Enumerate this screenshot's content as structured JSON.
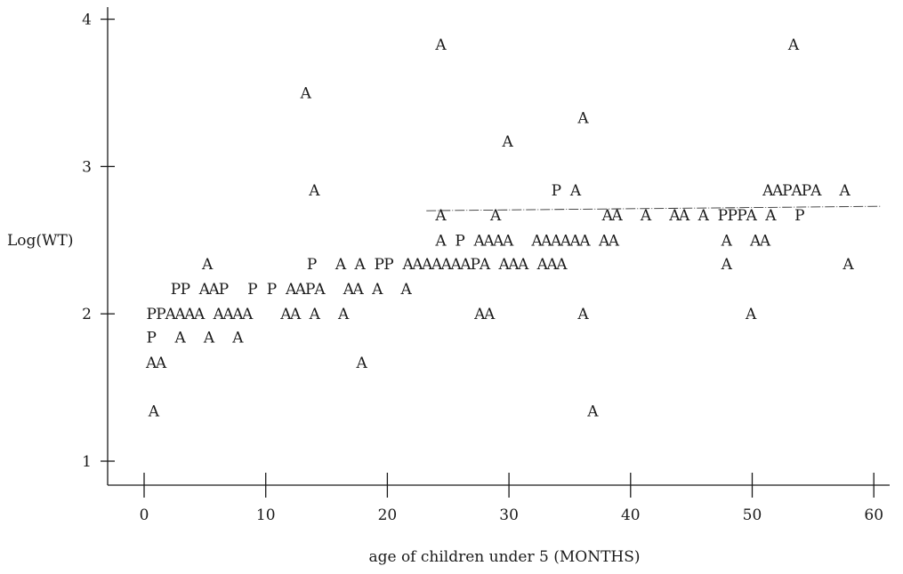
{
  "chart_data": {
    "type": "scatter",
    "xlabel": "age of children under 5 (MONTHS)",
    "ylabel": "Log(WT)",
    "x_ticks": [
      0,
      10,
      20,
      30,
      40,
      50,
      60
    ],
    "y_ticks": [
      1,
      2,
      3,
      4
    ],
    "xlim": [
      -1.2,
      61
    ],
    "ylim": [
      0.9,
      4.1
    ],
    "grid": false,
    "marker_legend": {
      "A": "A",
      "P": "P"
    },
    "reference_line": {
      "x": [
        23.5,
        60
      ],
      "y": [
        2.7,
        2.73
      ]
    },
    "rows": [
      {
        "y": 3.83,
        "text": "A",
        "x_start": 24.4
      },
      {
        "y": 3.83,
        "text": "A",
        "x_start": 53.4
      },
      {
        "y": 3.5,
        "text": "A",
        "x_start": 13.3
      },
      {
        "y": 3.33,
        "text": "A",
        "x_start": 36.1
      },
      {
        "y": 3.17,
        "text": "A",
        "x_start": 29.9
      },
      {
        "y": 2.84,
        "text": "A",
        "x_start": 14.0
      },
      {
        "y": 2.84,
        "text": "P A",
        "x_start": 33.9
      },
      {
        "y": 2.84,
        "text": "AAPAPA  A",
        "x_start": 51.3
      },
      {
        "y": 2.67,
        "text": "A",
        "x_start": 24.4
      },
      {
        "y": 2.67,
        "text": "A",
        "x_start": 28.9
      },
      {
        "y": 2.67,
        "text": "AA  A  AA A PPPA A  P",
        "x_start": 38.1
      },
      {
        "y": 2.5,
        "text": "A P AAAA  AAAAAA AA",
        "x_start": 24.4
      },
      {
        "y": 2.5,
        "text": "A  AA",
        "x_start": 47.9
      },
      {
        "y": 2.34,
        "text": "A",
        "x_start": 5.2
      },
      {
        "y": 2.34,
        "text": "P  A A PP AAAAAAAPA AAA AAA",
        "x_start": 13.8
      },
      {
        "y": 2.34,
        "text": "A",
        "x_start": 47.9
      },
      {
        "y": 2.34,
        "text": "A",
        "x_start": 57.9
      },
      {
        "y": 2.17,
        "text": "PP AAP  P P AAPA  AA A  A",
        "x_start": 2.6
      },
      {
        "y": 2.0,
        "text": "PPAAAA AAAA   AA A  A",
        "x_start": 0.6
      },
      {
        "y": 2.0,
        "text": "AA",
        "x_start": 27.6
      },
      {
        "y": 2.0,
        "text": "A",
        "x_start": 36.1
      },
      {
        "y": 2.0,
        "text": "A",
        "x_start": 49.9
      },
      {
        "y": 1.84,
        "text": "P  A  A  A",
        "x_start": 0.6
      },
      {
        "y": 1.67,
        "text": "AA",
        "x_start": 0.6
      },
      {
        "y": 1.67,
        "text": "A",
        "x_start": 17.9
      },
      {
        "y": 1.34,
        "text": "A",
        "x_start": 0.8
      },
      {
        "y": 1.34,
        "text": "A",
        "x_start": 36.9
      }
    ]
  }
}
